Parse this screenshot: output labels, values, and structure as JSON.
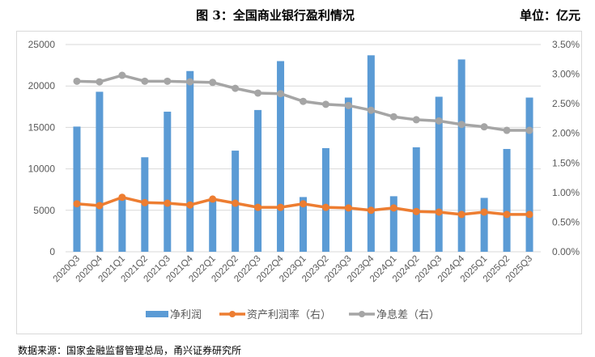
{
  "header": {
    "title": "图 3：全国商业银行盈利情况",
    "unit": "单位：亿元"
  },
  "source": "数据来源：国家金融监督管理总局，甬兴证券研究所",
  "chart_data": {
    "type": "bar+line",
    "title": "图 3：全国商业银行盈利情况",
    "categories": [
      "2020Q3",
      "2020Q4",
      "2021Q1",
      "2021Q2",
      "2021Q3",
      "2021Q4",
      "2022Q1",
      "2022Q2",
      "2022Q3",
      "2022Q4",
      "2023Q1",
      "2023Q2",
      "2023Q3",
      "2023Q4",
      "2024Q1",
      "2024Q2",
      "2024Q3",
      "2024Q4",
      "2025Q1",
      "2025Q2",
      "2025Q3"
    ],
    "series": [
      {
        "name": "净利润",
        "type": "bar",
        "axis": "left",
        "color": "#5b9bd5",
        "values": [
          15100,
          19300,
          6500,
          11400,
          16900,
          21800,
          6400,
          12200,
          17100,
          23000,
          6600,
          12500,
          18600,
          23700,
          6700,
          12600,
          18700,
          23200,
          6500,
          12400,
          18600
        ]
      },
      {
        "name": "资产利润率（右）",
        "type": "line",
        "axis": "right",
        "color": "#ed7d31",
        "values": [
          0.81,
          0.78,
          0.92,
          0.83,
          0.82,
          0.79,
          0.89,
          0.82,
          0.75,
          0.75,
          0.81,
          0.75,
          0.74,
          0.7,
          0.74,
          0.68,
          0.67,
          0.63,
          0.67,
          0.63,
          0.63
        ]
      },
      {
        "name": "净息差（右）",
        "type": "line",
        "axis": "right",
        "color": "#a5a5a5",
        "values": [
          2.88,
          2.87,
          2.98,
          2.88,
          2.88,
          2.87,
          2.86,
          2.76,
          2.68,
          2.67,
          2.54,
          2.49,
          2.47,
          2.39,
          2.28,
          2.23,
          2.21,
          2.15,
          2.11,
          2.05,
          2.05
        ]
      }
    ],
    "left_axis": {
      "ylim": [
        0,
        25000
      ],
      "ticks": [
        "0",
        "5000",
        "10000",
        "15000",
        "20000",
        "25000"
      ]
    },
    "right_axis": {
      "ylim": [
        0,
        3.5
      ],
      "ticks": [
        "0.00%",
        "0.50%",
        "1.00%",
        "1.50%",
        "2.00%",
        "2.50%",
        "3.00%",
        "3.50%"
      ]
    },
    "grid": true,
    "legend": "bottom"
  }
}
